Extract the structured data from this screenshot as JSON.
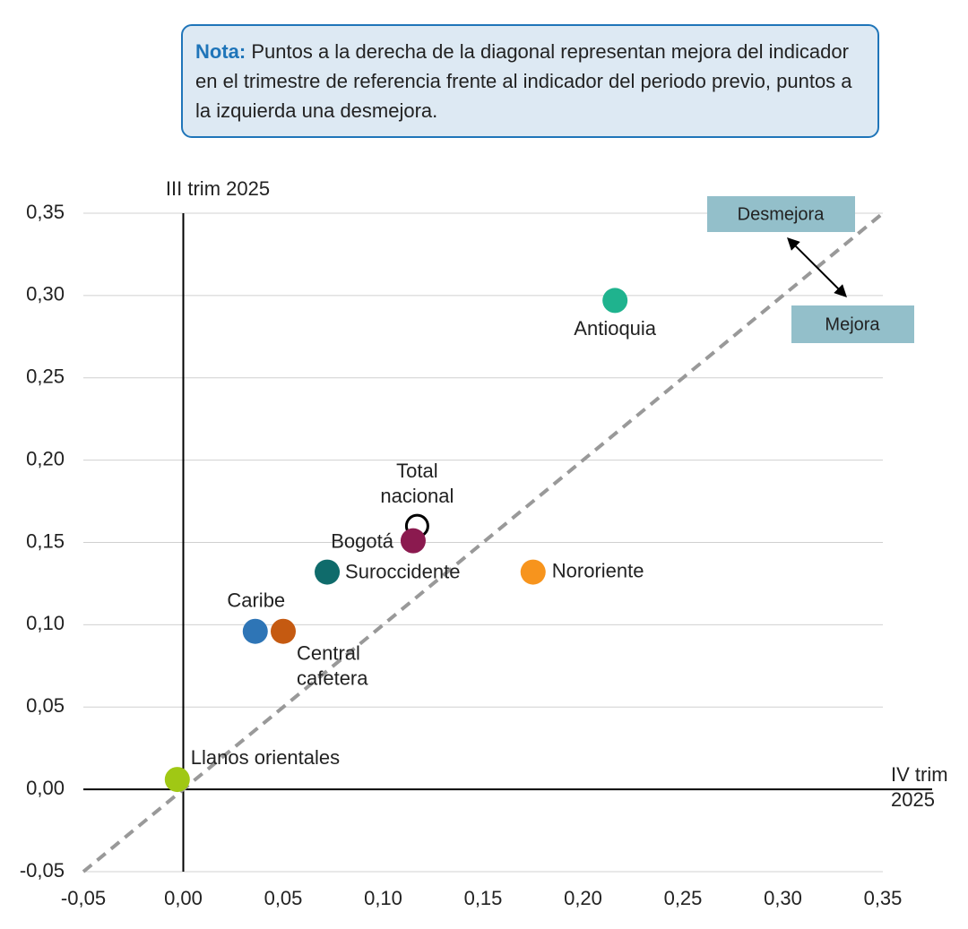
{
  "note": {
    "lead": "Nota:",
    "text": "Puntos a la derecha de la diagonal representan mejora del indicador en el trimestre de referencia frente al indicador del periodo previo, puntos a la izquierda una desmejora."
  },
  "chart_data": {
    "type": "scatter",
    "x_label": "IV trim 2025",
    "y_label": "III trim 2025",
    "annotations": [
      "Desmejora",
      "Mejora"
    ],
    "xlim": [
      -0.05,
      0.35
    ],
    "ylim": [
      -0.05,
      0.35
    ],
    "xticks": [
      {
        "value": -0.05,
        "label": "-0,05"
      },
      {
        "value": 0,
        "label": "0,00"
      },
      {
        "value": 0.05,
        "label": "0,05"
      },
      {
        "value": 0.1,
        "label": "0,10"
      },
      {
        "value": 0.15,
        "label": "0,15"
      },
      {
        "value": 0.2,
        "label": "0,20"
      },
      {
        "value": 0.25,
        "label": "0,25"
      },
      {
        "value": 0.3,
        "label": "0,30"
      },
      {
        "value": 0.35,
        "label": "0,35"
      }
    ],
    "yticks": [
      {
        "value": -0.05,
        "label": "-0,05"
      },
      {
        "value": 0,
        "label": "0,00"
      },
      {
        "value": 0.05,
        "label": "0,05"
      },
      {
        "value": 0.1,
        "label": "0,10"
      },
      {
        "value": 0.15,
        "label": "0,15"
      },
      {
        "value": 0.2,
        "label": "0,20"
      },
      {
        "value": 0.25,
        "label": "0,25"
      },
      {
        "value": 0.3,
        "label": "0,30"
      },
      {
        "value": 0.35,
        "label": "0,35"
      }
    ],
    "grid": true,
    "diagonal": true,
    "series": [
      {
        "name": "Antioquia",
        "color": "#1fb38e",
        "x": [
          0.216
        ],
        "values": [
          0.297
        ]
      },
      {
        "name": "Total nacional",
        "color": "#000000",
        "marker": "open",
        "x": [
          0.117
        ],
        "values": [
          0.16
        ]
      },
      {
        "name": "Bogotá",
        "color": "#8b1a4f",
        "x": [
          0.115
        ],
        "values": [
          0.151
        ]
      },
      {
        "name": "Suroccidente",
        "color": "#0f6b6b",
        "x": [
          0.072
        ],
        "values": [
          0.132
        ]
      },
      {
        "name": "Nororiente",
        "color": "#f7941d",
        "x": [
          0.175
        ],
        "values": [
          0.132
        ]
      },
      {
        "name": "Caribe",
        "color": "#2e75b6",
        "x": [
          0.036
        ],
        "values": [
          0.096
        ]
      },
      {
        "name": "Central cafetera",
        "color": "#c55a11",
        "x": [
          0.05
        ],
        "values": [
          0.096
        ]
      },
      {
        "name": "Llanos orientales",
        "color": "#a0c814",
        "x": [
          -0.003
        ],
        "values": [
          0.006
        ]
      }
    ]
  }
}
